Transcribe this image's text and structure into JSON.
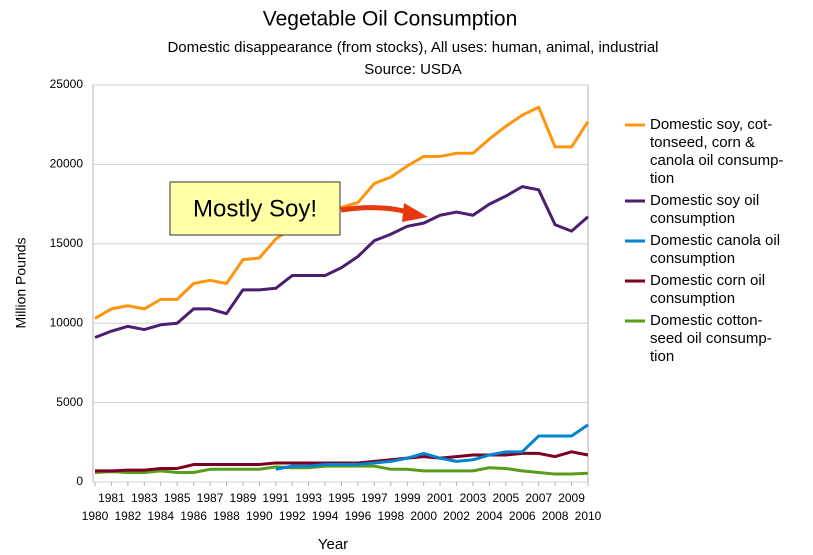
{
  "chart_data": {
    "type": "line",
    "title": "Vegetable Oil Consumption",
    "subtitle": "Domestic disappearance (from stocks), All uses: human, animal, industrial",
    "source": "Source: USDA",
    "xlabel": "Year",
    "ylabel": "Million Pounds",
    "annotation": "Mostly Soy!",
    "x": [
      1980,
      1981,
      1982,
      1983,
      1984,
      1985,
      1986,
      1987,
      1988,
      1989,
      1990,
      1991,
      1992,
      1993,
      1994,
      1995,
      1996,
      1997,
      1998,
      1999,
      2000,
      2001,
      2002,
      2003,
      2004,
      2005,
      2006,
      2007,
      2008,
      2009,
      2010
    ],
    "xlim": [
      1980,
      2010
    ],
    "xticks": [
      1980,
      1981,
      1982,
      1983,
      1984,
      1985,
      1986,
      1987,
      1988,
      1989,
      1990,
      1991,
      1992,
      1993,
      1994,
      1995,
      1996,
      1997,
      1998,
      1999,
      2000,
      2001,
      2002,
      2003,
      2004,
      2005,
      2006,
      2007,
      2008,
      2009,
      2010
    ],
    "ylim": [
      0,
      25000
    ],
    "yticks": [
      0,
      5000,
      10000,
      15000,
      20000,
      25000
    ],
    "grid": true,
    "legend": "right",
    "series": [
      {
        "name": "Domestic soy, cot-tonseed, corn & canola oil consump-tion",
        "color": "#ff950e",
        "values": [
          10300,
          10900,
          11100,
          10900,
          11500,
          11500,
          12500,
          12700,
          12500,
          14000,
          14100,
          15300,
          16000,
          16300,
          16800,
          17300,
          17600,
          18800,
          19200,
          19900,
          20500,
          20500,
          20700,
          20700,
          21600,
          22400,
          23100,
          23600,
          21100,
          21100,
          22700
        ]
      },
      {
        "name": "Domestic soy oil consumption",
        "color": "#4b1f6f",
        "values": [
          9100,
          9500,
          9800,
          9600,
          9900,
          10000,
          10900,
          10900,
          10600,
          12100,
          12100,
          12200,
          13000,
          13000,
          13000,
          13500,
          14200,
          15200,
          15600,
          16100,
          16300,
          16800,
          17000,
          16800,
          17500,
          18000,
          18600,
          18400,
          16200,
          15800,
          16700
        ]
      },
      {
        "name": "Domestic canola oil consumption",
        "color": "#0084d1",
        "values": [
          null,
          null,
          null,
          null,
          null,
          null,
          null,
          null,
          null,
          null,
          null,
          800,
          1000,
          1000,
          1100,
          1100,
          1100,
          1200,
          1300,
          1500,
          1800,
          1500,
          1300,
          1400,
          1700,
          1900,
          1900,
          2900,
          2900,
          2900,
          3600
        ]
      },
      {
        "name": "Domestic corn oil consumption",
        "color": "#7e0021",
        "values": [
          700,
          700,
          750,
          750,
          850,
          850,
          1100,
          1100,
          1100,
          1100,
          1100,
          1200,
          1200,
          1200,
          1200,
          1200,
          1200,
          1300,
          1400,
          1500,
          1600,
          1500,
          1600,
          1700,
          1700,
          1700,
          1800,
          1800,
          1600,
          1900,
          1700
        ]
      },
      {
        "name": "Domestic cotton-seed oil consump-tion",
        "color": "#579d1c",
        "values": [
          600,
          650,
          600,
          600,
          700,
          600,
          600,
          800,
          800,
          800,
          800,
          950,
          900,
          900,
          1000,
          1000,
          1000,
          1000,
          800,
          800,
          700,
          700,
          700,
          700,
          900,
          850,
          700,
          600,
          500,
          500,
          550
        ]
      }
    ]
  }
}
